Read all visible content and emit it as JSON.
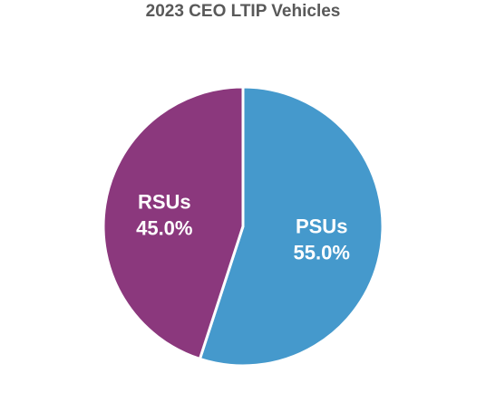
{
  "chart_data": {
    "type": "pie",
    "title": "2023 CEO LTIP Vehicles",
    "slices": [
      {
        "label": "PSUs",
        "value": 55.0,
        "value_label": "55.0%",
        "color": "#4599CC"
      },
      {
        "label": "RSUs",
        "value": 45.0,
        "value_label": "45.0%",
        "color": "#8B387D"
      }
    ],
    "start": "12 o'clock",
    "direction": "clockwise",
    "legend": "none"
  }
}
